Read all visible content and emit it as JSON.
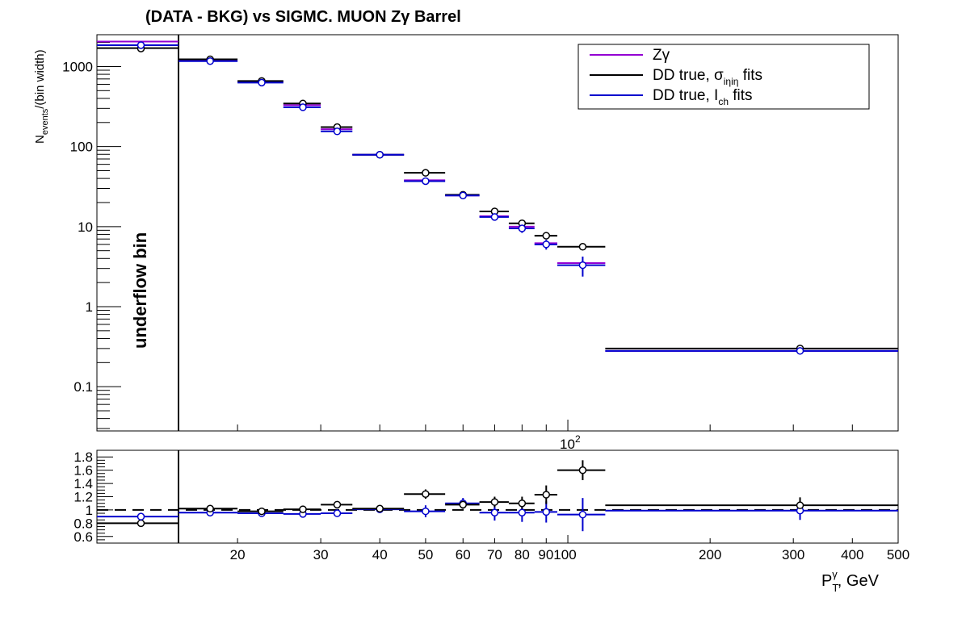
{
  "title": "(DATA - BKG) vs SIGMC. MUON Zγ  Barrel",
  "colors": {
    "signal": "#9400d3",
    "sieie": "#000000",
    "ich": "#0000cd"
  },
  "legend": [
    {
      "label": "Zγ",
      "color": "#9400d3"
    },
    {
      "label": "DD true,  σ_iηiη fits",
      "color": "#000000"
    },
    {
      "label": "DD true, I_ch fits",
      "color": "#0000cd"
    }
  ],
  "underflow_label": "underflow bin",
  "chart_data": [
    {
      "type": "line",
      "panel": "main",
      "title": "(DATA - BKG) vs SIGMC. MUON Zγ  Barrel",
      "xlabel": "P_T^γ, GeV",
      "ylabel": "N_events/(bin width)",
      "yscale": "log",
      "ylim": [
        0.028,
        2500
      ],
      "xscale": "log",
      "xlim": [
        15,
        500
      ],
      "yticks": [
        "0.1",
        "1",
        "10",
        "100",
        "1000"
      ],
      "x_exponent_label": "10^2",
      "underflow": {
        "signal": 2050,
        "sieie": 1700,
        "ich": 1850,
        "sieie_pt": 1680,
        "ich_pt": 1850
      },
      "bins": [
        {
          "lo": 15,
          "hi": 20,
          "signal": 1180,
          "sieie": 1230,
          "ich": 1170
        },
        {
          "lo": 20,
          "hi": 25,
          "signal": 650,
          "sieie": 660,
          "ich": 630
        },
        {
          "lo": 25,
          "hi": 30,
          "signal": 330,
          "sieie": 345,
          "ich": 310
        },
        {
          "lo": 30,
          "hi": 35,
          "signal": 165,
          "sieie": 175,
          "ich": 155
        },
        {
          "lo": 35,
          "hi": 45,
          "signal": 79,
          "sieie": 79,
          "ich": 79
        },
        {
          "lo": 45,
          "hi": 55,
          "signal": 38,
          "sieie": 47,
          "ich": 37
        },
        {
          "lo": 55,
          "hi": 65,
          "signal": 24.5,
          "sieie": 25,
          "ich": 24.5
        },
        {
          "lo": 65,
          "hi": 75,
          "signal": 13.5,
          "sieie": 15.5,
          "ich": 13.2
        },
        {
          "lo": 75,
          "hi": 85,
          "signal": 10,
          "sieie": 11,
          "ich": 9.5
        },
        {
          "lo": 85,
          "hi": 95,
          "signal": 6.2,
          "sieie": 7.7,
          "ich": 6
        },
        {
          "lo": 95,
          "hi": 120,
          "signal": 3.5,
          "sieie": 5.6,
          "ich": 3.3
        },
        {
          "lo": 120,
          "hi": 500,
          "signal": 0.28,
          "sieie": 0.3,
          "ich": 0.28
        }
      ],
      "marker_x": [
        17.5,
        22.5,
        27.5,
        32.5,
        40,
        50,
        60,
        70,
        80,
        90,
        107.5,
        310
      ],
      "ich_errors": [
        0,
        0,
        0,
        0,
        0,
        0.06,
        0,
        0.1,
        0.12,
        0.14,
        0.28,
        0
      ]
    },
    {
      "type": "line",
      "panel": "ratio",
      "ylim": [
        0.5,
        1.9
      ],
      "yticks": [
        "0.6",
        "0.8",
        "1",
        "1.2",
        "1.4",
        "1.6",
        "1.8"
      ],
      "xticks": [
        "20",
        "30",
        "40",
        "50",
        "60",
        "70",
        "80",
        "90100",
        "200",
        "300",
        "400",
        "500"
      ],
      "xtick_values": [
        20,
        30,
        40,
        50,
        60,
        70,
        80,
        95,
        200,
        300,
        400,
        500
      ],
      "reference_line": 1,
      "underflow": {
        "sieie": 0.8,
        "ich": 0.9
      },
      "ratio_sieie": [
        1.02,
        0.98,
        1.01,
        1.08,
        1.02,
        1.24,
        1.08,
        1.12,
        1.1,
        1.23,
        1.6,
        1.07
      ],
      "ratio_ich": [
        0.96,
        0.95,
        0.94,
        0.95,
        1.01,
        0.98,
        1.1,
        0.96,
        0.96,
        0.97,
        0.93,
        0.99
      ],
      "err_sieie": [
        0.02,
        0.02,
        0.02,
        0.03,
        0.03,
        0.07,
        0.06,
        0.08,
        0.1,
        0.14,
        0.15,
        0.12
      ],
      "err_ich": [
        0.02,
        0.02,
        0.02,
        0.03,
        0.03,
        0.09,
        0.08,
        0.12,
        0.14,
        0.16,
        0.25,
        0.14
      ]
    }
  ]
}
